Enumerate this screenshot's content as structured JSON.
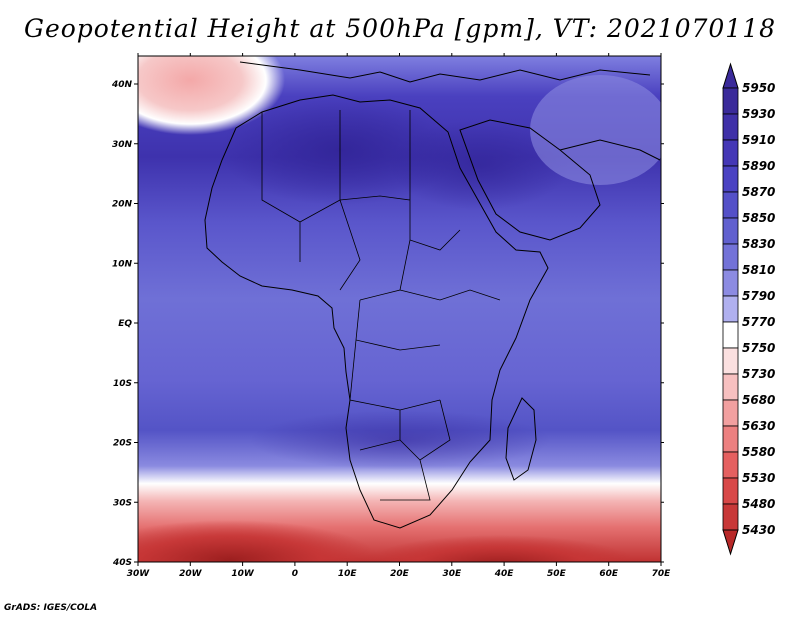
{
  "title": "Geopotential Height at 500hPa [gpm], VT: 2021070118",
  "credit": "GrADS: IGES/COLA",
  "map": {
    "lon_ticks": [
      "30W",
      "20W",
      "10W",
      "0",
      "10E",
      "20E",
      "30E",
      "40E",
      "50E",
      "60E",
      "70E"
    ],
    "lat_ticks": [
      "40N",
      "30N",
      "20N",
      "10N",
      "EQ",
      "10S",
      "20S",
      "30S",
      "40S"
    ]
  },
  "colorbar": {
    "levels": [
      "5950",
      "5930",
      "5910",
      "5890",
      "5870",
      "5850",
      "5830",
      "5810",
      "5790",
      "5770",
      "5750",
      "5730",
      "5680",
      "5630",
      "5580",
      "5530",
      "5480",
      "5430"
    ],
    "colors": [
      "#3a2a9a",
      "#3f30a8",
      "#4437b6",
      "#4a42c2",
      "#5450c8",
      "#6160cf",
      "#7372d8",
      "#8c8be2",
      "#b0b0ef",
      "#ffffff",
      "#fbe0e0",
      "#f7c0c0",
      "#f2a0a0",
      "#ec8080",
      "#e56060",
      "#d84848",
      "#c83838",
      "#b82828"
    ]
  },
  "colors": {
    "high": "#3a2a9a",
    "mid": "#6f70d6",
    "white": "#ffffff",
    "low": "#b52a2a"
  }
}
